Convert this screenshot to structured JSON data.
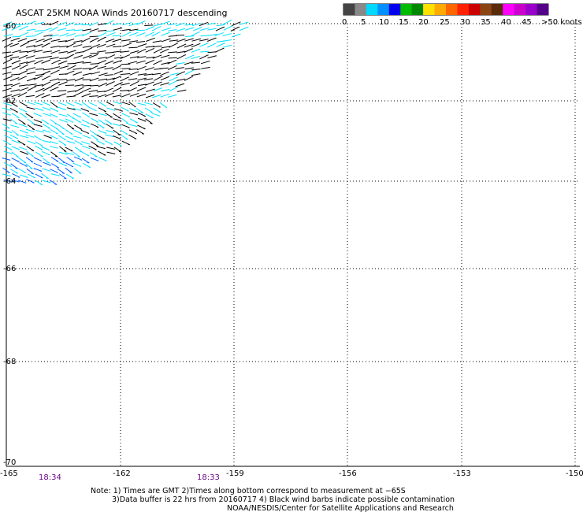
{
  "title": "ASCAT 25KM NOAA Winds 20160717 descending",
  "legend": {
    "swatches": [
      "#444444",
      "#888888",
      "#00d8ff",
      "#0090ff",
      "#0000ee",
      "#00bb00",
      "#008800",
      "#ffe000",
      "#ffaa00",
      "#ff6600",
      "#ff2200",
      "#cc0000",
      "#8b4513",
      "#5a2a0a",
      "#ff00ff",
      "#cc00cc",
      "#9900cc",
      "#550088"
    ],
    "labels": [
      "0",
      "5",
      "10",
      "15",
      "20",
      "25",
      "30",
      "35",
      "40",
      "45",
      ">50 knots"
    ]
  },
  "lat_labels": [
    "-60",
    "-62",
    "-64",
    "-66",
    "-68",
    "-70"
  ],
  "lon_labels": [
    "-165",
    "-162",
    "-159",
    "-156",
    "-153",
    "-150"
  ],
  "times": [
    "18:34",
    "18:33"
  ],
  "notes": [
    "Note: 1) Times are GMT 2)Times along bottom correspond to measurement at −65S",
    "3)Data buffer is 22 hrs from 20160717 4) Black wind barbs indicate possible contamination",
    "NOAA/NESDIS/Center for Satellite Applications and Research"
  ],
  "colors": {
    "barb_black": "#000000",
    "barb_cyan": "#00e0ff",
    "barb_blue": "#0060ff",
    "grid": "#000000"
  },
  "icons": [
    "wind-barb-icon"
  ]
}
